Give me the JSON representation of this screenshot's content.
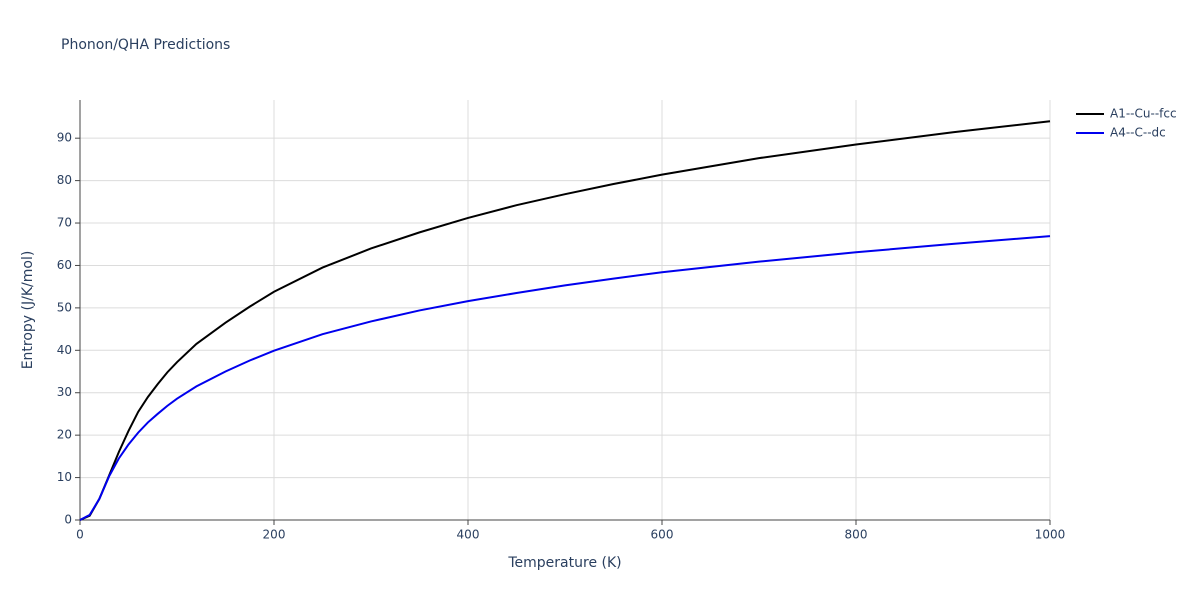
{
  "chart_data": {
    "type": "line",
    "title": "Phonon/QHA Predictions",
    "x_label": "Temperature (K)",
    "y_label": "Entropy (J/K/mol)",
    "x": [
      0,
      10,
      20,
      30,
      40,
      50,
      60,
      70,
      80,
      90,
      100,
      120,
      150,
      175,
      200,
      250,
      300,
      350,
      400,
      450,
      500,
      550,
      600,
      700,
      800,
      900,
      1000
    ],
    "series": [
      {
        "name": "A1--Cu--fcc",
        "color": "#000000",
        "values": [
          0,
          1,
          5,
          10.5,
          16,
          21,
          25.5,
          29,
          32,
          34.8,
          37.2,
          41.5,
          46.5,
          50.3,
          53.8,
          59.5,
          64,
          67.8,
          71.2,
          74.2,
          76.8,
          79.2,
          81.4,
          85.3,
          88.5,
          91.4,
          94
        ]
      },
      {
        "name": "A4--C--dc",
        "color": "#0000ee",
        "values": [
          0,
          1.2,
          5,
          10.3,
          14.5,
          17.8,
          20.6,
          23,
          25,
          26.9,
          28.6,
          31.5,
          35,
          37.6,
          39.9,
          43.8,
          46.8,
          49.4,
          51.6,
          53.5,
          55.3,
          56.9,
          58.4,
          60.9,
          63.1,
          65.1,
          66.9
        ]
      }
    ],
    "xlim": [
      0,
      1000
    ],
    "xticks": [
      0,
      200,
      400,
      600,
      800,
      1000
    ],
    "ylim": [
      0,
      99
    ],
    "yticks": [
      0,
      10,
      20,
      30,
      40,
      50,
      60,
      70,
      80,
      90
    ],
    "grid": true,
    "legend": "outside-top-right"
  }
}
